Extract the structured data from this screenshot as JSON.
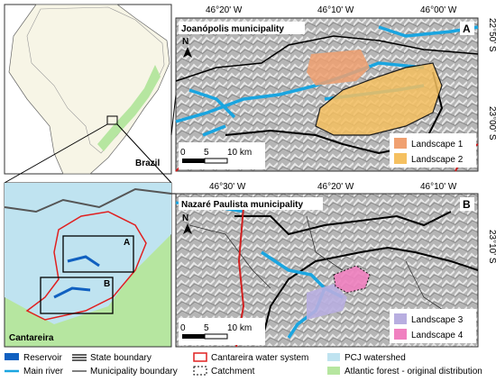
{
  "overview": {
    "country_label": "Brazil"
  },
  "inset": {
    "label": "Cantareira",
    "boxes": [
      "A",
      "B"
    ]
  },
  "panel_a": {
    "title": "Joanópolis municipality",
    "letter": "A",
    "top_ticks": [
      "46°20' W",
      "46°10' W",
      "46°00' W"
    ],
    "side_ticks": [
      "22°50' S",
      "23°00' S"
    ],
    "north": "N",
    "scale": [
      "0",
      "5",
      "10 km"
    ],
    "legend": [
      "Landscape 1",
      "Landscape 2"
    ]
  },
  "panel_b": {
    "title": "Nazaré Paulista municipality",
    "letter": "B",
    "top_ticks": [
      "46°30' W",
      "46°20' W",
      "46°10' W"
    ],
    "side_ticks": [
      "23°10' S"
    ],
    "north": "N",
    "scale": [
      "0",
      "5",
      "10 km"
    ],
    "legend": [
      "Landscape 3",
      "Landscape 4"
    ]
  },
  "legend": [
    "Reservoir",
    "Main river",
    "State boundary",
    "Municipality boundary",
    "Cantareira water system",
    "Catchment",
    "PCJ watershed",
    "Atlantic forest - original distribution"
  ]
}
